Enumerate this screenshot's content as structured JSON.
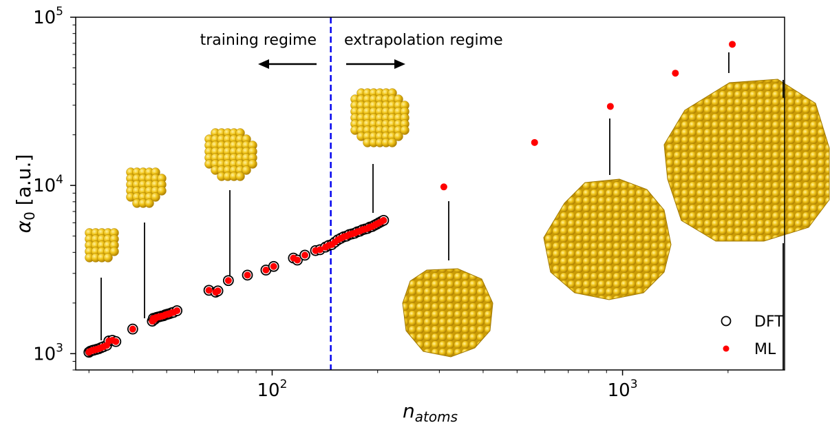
{
  "chart_data": {
    "type": "scatter",
    "title": "",
    "xlabel": "n_atoms",
    "ylabel": "α0 [a.u.]",
    "xscale": "log",
    "yscale": "log",
    "xlim": [
      27.5,
      2900
    ],
    "ylim": [
      800,
      100000
    ],
    "x_ticks": [
      {
        "value": 100,
        "base": "10",
        "exp": "2"
      },
      {
        "value": 1000,
        "base": "10",
        "exp": "3"
      }
    ],
    "y_ticks": [
      {
        "value": 1000,
        "base": "10",
        "exp": "3"
      },
      {
        "value": 10000,
        "base": "10",
        "exp": "4"
      },
      {
        "value": 100000,
        "base": "10",
        "exp": "5"
      }
    ],
    "grid": false,
    "legend": {
      "location": "lower-right",
      "items": [
        "DFT",
        "ML"
      ]
    },
    "divider": {
      "x": 147,
      "style": "dashed",
      "color": "#0000ee"
    },
    "annotations": {
      "training": "training regime",
      "extrapolation": "extrapolation regime"
    },
    "colors": {
      "ml": "#ff0000",
      "dft_edge": "#000000",
      "divider": "#0000ee",
      "cluster": "#e8b820"
    },
    "series": [
      {
        "name": "DFT",
        "marker": "open-circle",
        "points": [
          [
            30,
            1020
          ],
          [
            30.3,
            1035
          ],
          [
            30.7,
            1045
          ],
          [
            31,
            1050
          ],
          [
            31.5,
            1060
          ],
          [
            32,
            1070
          ],
          [
            32.5,
            1085
          ],
          [
            33,
            1100
          ],
          [
            33.7,
            1120
          ],
          [
            34.2,
            1190
          ],
          [
            35,
            1200
          ],
          [
            35.8,
            1180
          ],
          [
            40,
            1400
          ],
          [
            45.5,
            1560
          ],
          [
            45.8,
            1620
          ],
          [
            46.2,
            1600
          ],
          [
            46.7,
            1640
          ],
          [
            47.2,
            1650
          ],
          [
            47.8,
            1660
          ],
          [
            48.3,
            1670
          ],
          [
            49,
            1680
          ],
          [
            49.5,
            1700
          ],
          [
            50,
            1710
          ],
          [
            50.5,
            1720
          ],
          [
            51,
            1730
          ],
          [
            51.7,
            1750
          ],
          [
            52.3,
            1760
          ],
          [
            53.5,
            1800
          ],
          [
            66,
            2380
          ],
          [
            69,
            2320
          ],
          [
            70,
            2360
          ],
          [
            75,
            2720
          ],
          [
            85,
            2930
          ],
          [
            96,
            3140
          ],
          [
            101,
            3300
          ],
          [
            115,
            3700
          ],
          [
            118,
            3600
          ],
          [
            124,
            3850
          ],
          [
            133,
            4100
          ],
          [
            137,
            4150
          ],
          [
            142,
            4300
          ],
          [
            145,
            4400
          ],
          [
            148,
            4450
          ],
          [
            151,
            4600
          ],
          [
            154,
            4750
          ],
          [
            157,
            4850
          ],
          [
            160,
            4950
          ],
          [
            163,
            5000
          ],
          [
            166,
            5100
          ],
          [
            169,
            5150
          ],
          [
            172,
            5200
          ],
          [
            175,
            5300
          ],
          [
            178,
            5350
          ],
          [
            181,
            5450
          ],
          [
            184,
            5500
          ],
          [
            187,
            5550
          ],
          [
            190,
            5650
          ],
          [
            193,
            5700
          ],
          [
            196,
            5800
          ],
          [
            199,
            5900
          ],
          [
            202,
            6000
          ],
          [
            205,
            6100
          ],
          [
            208,
            6200
          ]
        ]
      },
      {
        "name": "ML",
        "marker": "filled-dot",
        "points": [
          [
            30,
            1020
          ],
          [
            30.3,
            1035
          ],
          [
            30.7,
            1045
          ],
          [
            31,
            1050
          ],
          [
            31.5,
            1060
          ],
          [
            32,
            1070
          ],
          [
            32.5,
            1085
          ],
          [
            33,
            1100
          ],
          [
            33.7,
            1120
          ],
          [
            34.2,
            1190
          ],
          [
            35,
            1200
          ],
          [
            35.8,
            1180
          ],
          [
            40,
            1400
          ],
          [
            45.5,
            1560
          ],
          [
            45.8,
            1620
          ],
          [
            46.2,
            1600
          ],
          [
            46.7,
            1640
          ],
          [
            47.2,
            1650
          ],
          [
            47.8,
            1660
          ],
          [
            48.3,
            1670
          ],
          [
            49,
            1680
          ],
          [
            49.5,
            1700
          ],
          [
            50,
            1710
          ],
          [
            50.5,
            1720
          ],
          [
            51,
            1730
          ],
          [
            51.7,
            1750
          ],
          [
            52.3,
            1760
          ],
          [
            53.5,
            1800
          ],
          [
            66,
            2380
          ],
          [
            69,
            2320
          ],
          [
            70,
            2360
          ],
          [
            75,
            2720
          ],
          [
            85,
            2930
          ],
          [
            96,
            3140
          ],
          [
            101,
            3300
          ],
          [
            115,
            3700
          ],
          [
            118,
            3600
          ],
          [
            124,
            3850
          ],
          [
            133,
            4100
          ],
          [
            137,
            4150
          ],
          [
            142,
            4300
          ],
          [
            145,
            4400
          ],
          [
            148,
            4450
          ],
          [
            151,
            4600
          ],
          [
            154,
            4750
          ],
          [
            157,
            4850
          ],
          [
            160,
            4950
          ],
          [
            163,
            5000
          ],
          [
            166,
            5100
          ],
          [
            169,
            5150
          ],
          [
            172,
            5200
          ],
          [
            175,
            5300
          ],
          [
            178,
            5350
          ],
          [
            181,
            5450
          ],
          [
            184,
            5500
          ],
          [
            187,
            5550
          ],
          [
            190,
            5650
          ],
          [
            193,
            5700
          ],
          [
            196,
            5800
          ],
          [
            199,
            5900
          ],
          [
            202,
            6000
          ],
          [
            205,
            6100
          ],
          [
            208,
            6200
          ],
          [
            309,
            9800
          ],
          [
            561,
            18000
          ],
          [
            923,
            29500
          ],
          [
            1415,
            46500
          ],
          [
            2057,
            69000
          ]
        ]
      }
    ]
  }
}
